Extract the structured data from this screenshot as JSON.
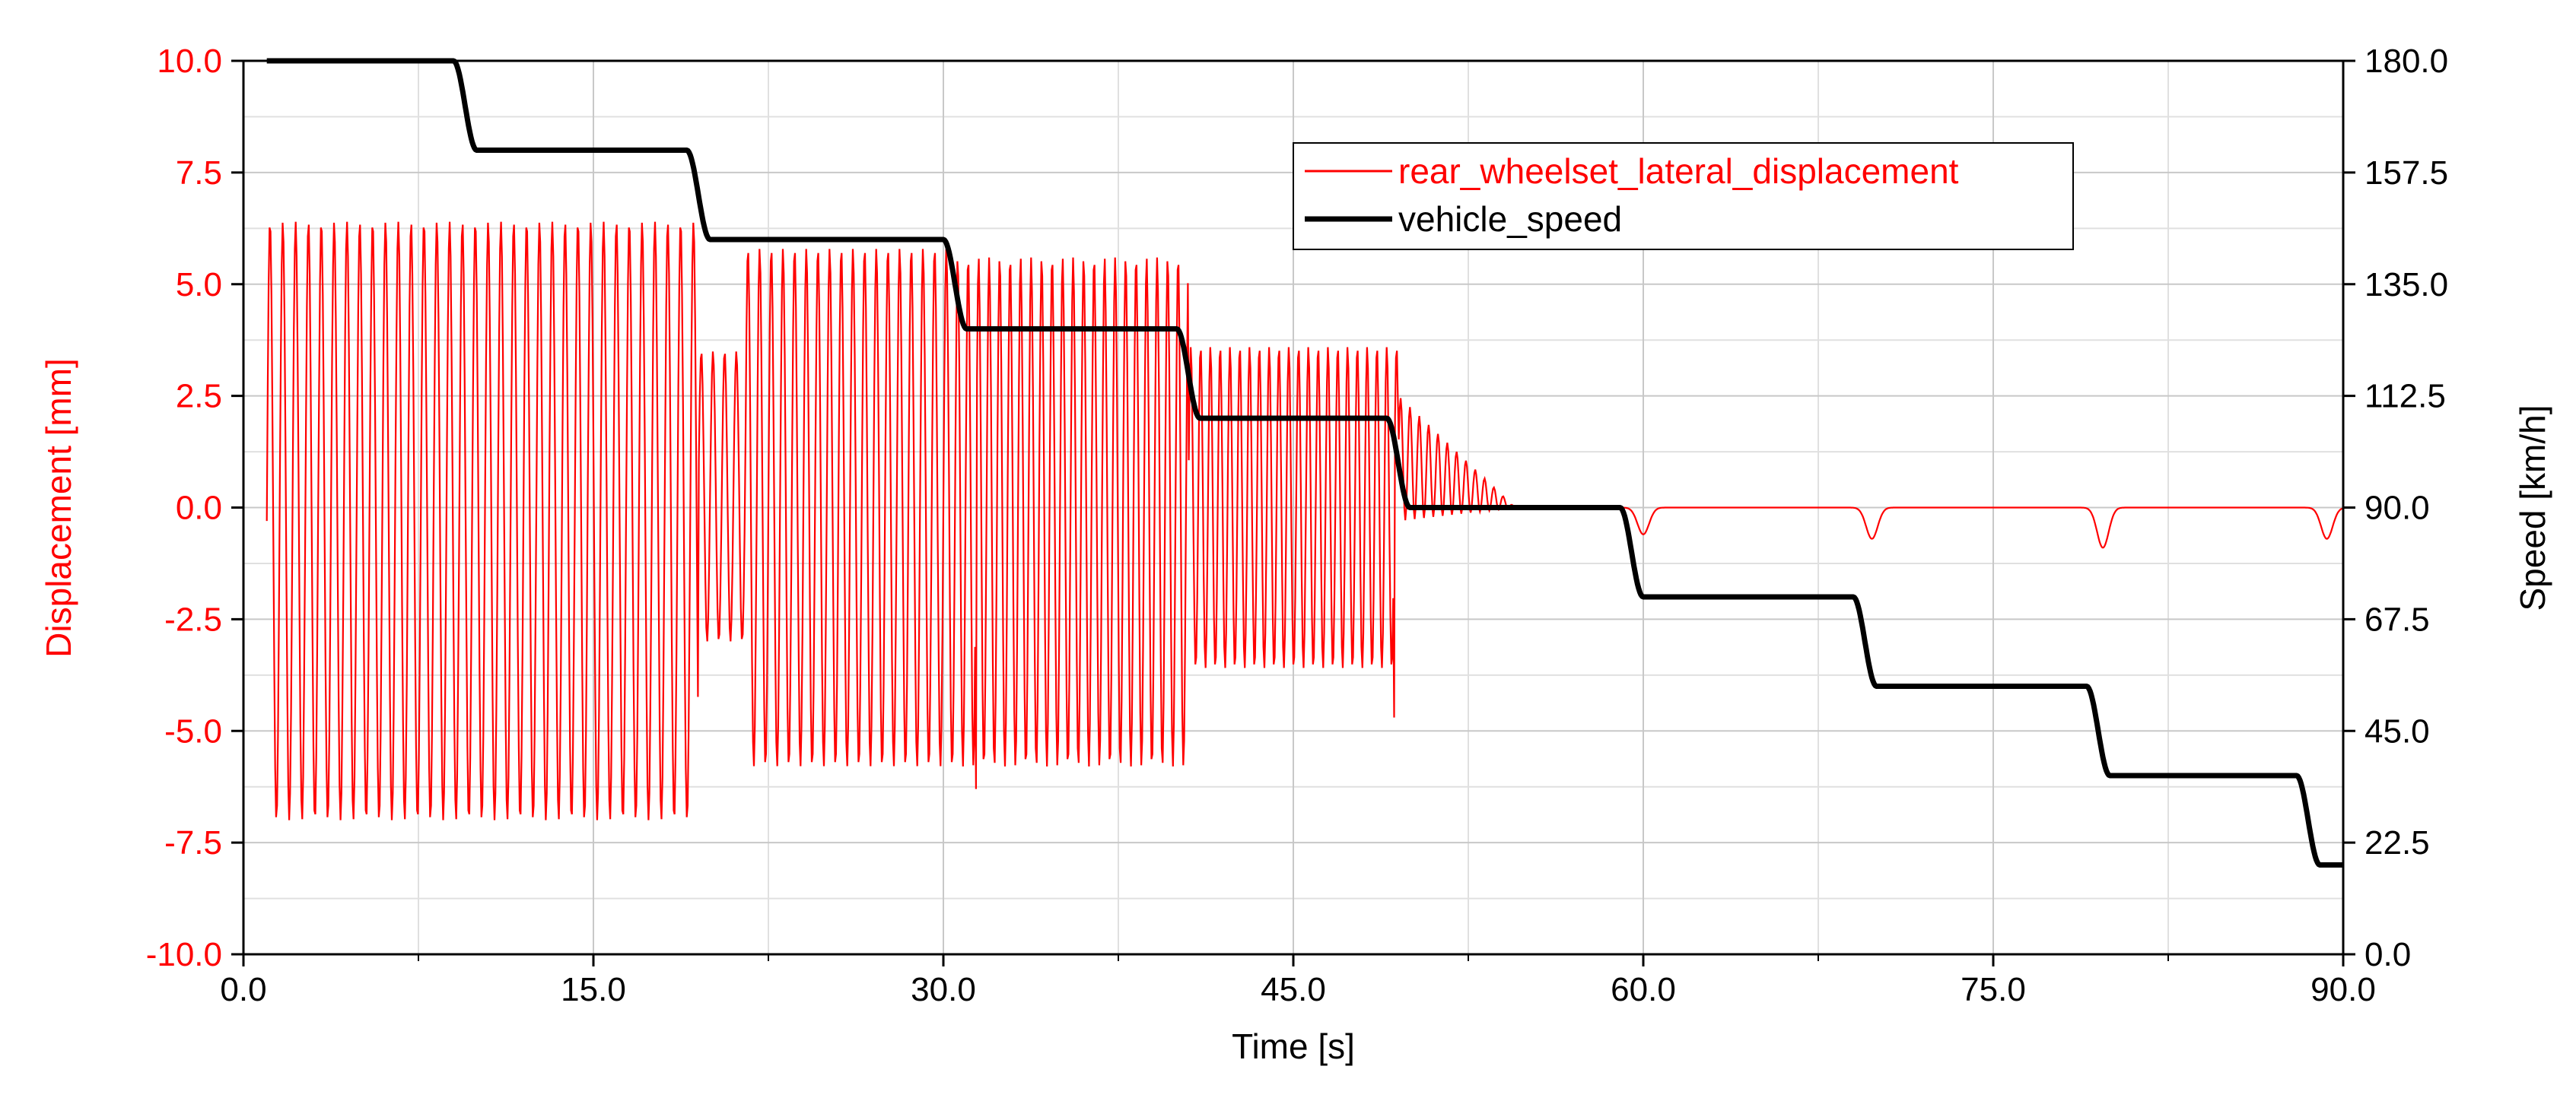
{
  "chart_data": {
    "type": "line",
    "title": "",
    "xlabel": "Time [s]",
    "ylabel_left": "Displacement [mm]",
    "ylabel_right": "Speed [km/h]",
    "xlim": [
      0,
      90
    ],
    "ylim_left": [
      -10,
      10
    ],
    "ylim_right": [
      0,
      180
    ],
    "x_ticks": [
      "0.0",
      "15.0",
      "30.0",
      "45.0",
      "60.0",
      "75.0",
      "90.0"
    ],
    "y_left_ticks": [
      "-10.0",
      "-7.5",
      "-5.0",
      "-2.5",
      "0.0",
      "2.5",
      "5.0",
      "7.5",
      "10.0"
    ],
    "y_right_ticks": [
      "0.0",
      "22.5",
      "45.0",
      "67.5",
      "90.0",
      "112.5",
      "135.0",
      "157.5",
      "180.0"
    ],
    "grid": true,
    "legend_position": "top-center-right",
    "colors": {
      "displacement": "#ff0000",
      "speed": "#000000",
      "left_axis_text": "#ff0000"
    },
    "series": [
      {
        "name": "vehicle_speed",
        "axis": "right",
        "x": [
          1,
          9,
          10,
          19,
          20,
          30,
          31,
          40,
          41,
          49,
          50,
          59,
          60,
          69,
          70,
          79,
          80,
          88,
          89,
          90
        ],
        "values": [
          180,
          180,
          162,
          162,
          144,
          144,
          126,
          126,
          108,
          108,
          90,
          90,
          72,
          72,
          54,
          54,
          36,
          36,
          18,
          18
        ]
      },
      {
        "name": "rear_wheelset_lateral_displacement",
        "axis": "left",
        "oscillation_segments": [
          {
            "x_start": 1.0,
            "x_end": 19.5,
            "max": 6.4,
            "min": -7.0,
            "period": 0.55
          },
          {
            "x_start": 19.5,
            "x_end": 21.5,
            "max": 3.5,
            "min": -3.0,
            "period": 0.5
          },
          {
            "x_start": 21.5,
            "x_end": 30.5,
            "max": 5.8,
            "min": -5.8,
            "period": 0.5
          },
          {
            "x_start": 30.5,
            "x_end": 40.5,
            "max": 5.6,
            "min": -5.8,
            "period": 0.45
          },
          {
            "x_start": 40.5,
            "x_end": 49.5,
            "max": 3.6,
            "min": -3.6,
            "period": 0.42
          },
          {
            "x_start": 49.5,
            "x_end": 54.5,
            "max": 2.5,
            "min": -0.3,
            "period": 0.4,
            "decay": true
          }
        ],
        "dips": [
          {
            "x": 60.0,
            "depth": -0.6
          },
          {
            "x": 69.8,
            "depth": -0.7
          },
          {
            "x": 79.7,
            "depth": -0.9
          },
          {
            "x": 89.3,
            "depth": -0.7
          }
        ],
        "spikes": [
          {
            "x": 31.4,
            "value": -6.3
          },
          {
            "x": 49.3,
            "value": -4.7
          }
        ]
      }
    ]
  }
}
